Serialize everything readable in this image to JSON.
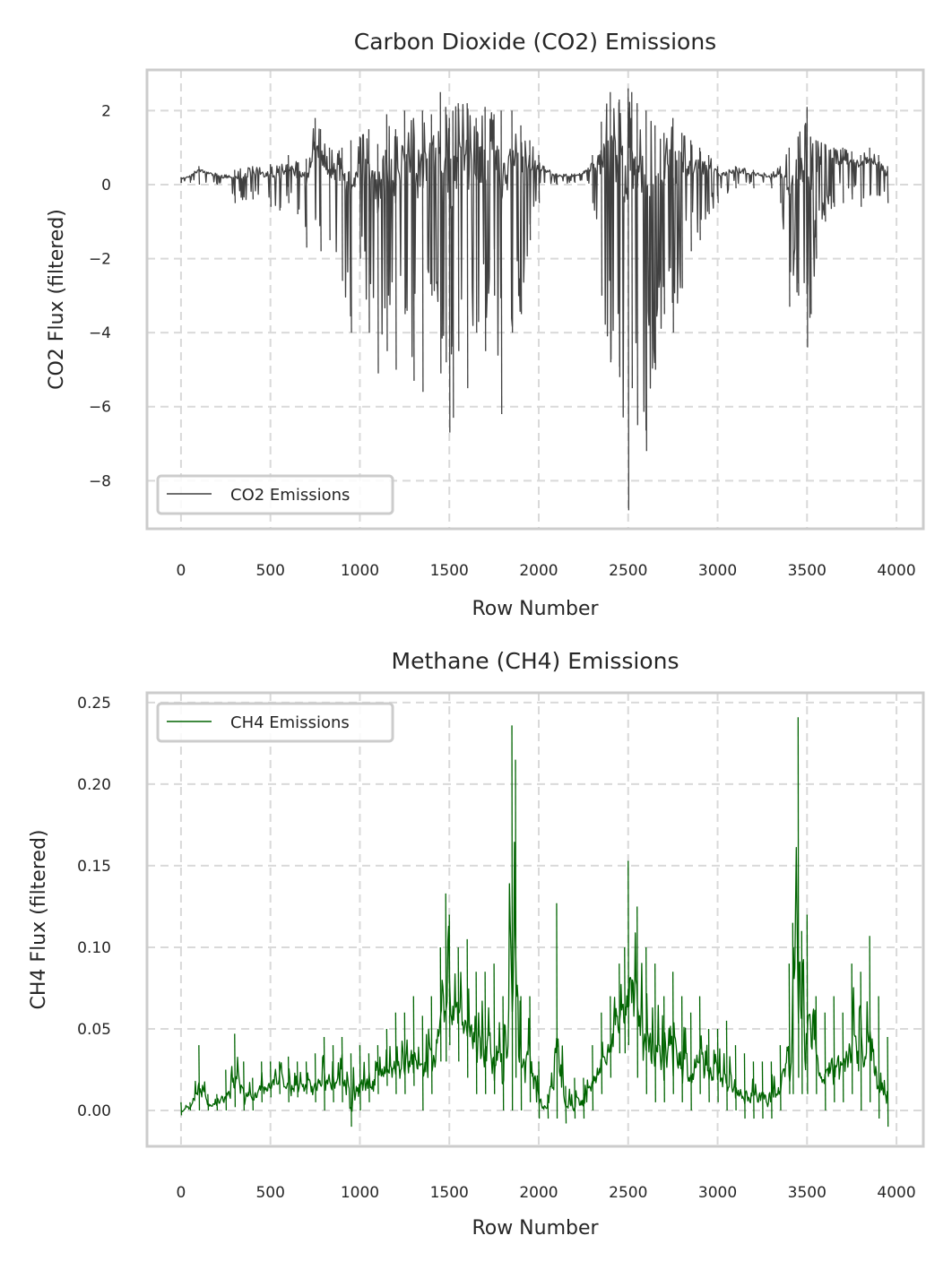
{
  "chart_data": [
    {
      "type": "line",
      "title": "Carbon Dioxide (CO2) Emissions",
      "xlabel": "Row Number",
      "ylabel": "CO2 Flux (filtered)",
      "xlim": [
        -190,
        4150
      ],
      "ylim": [
        -9.3,
        3.1
      ],
      "xticks": [
        0,
        500,
        1000,
        1500,
        2000,
        2500,
        3000,
        3500,
        4000
      ],
      "yticks": [
        2,
        0,
        -2,
        -4,
        -6,
        -8
      ],
      "ytick_labels": [
        "2",
        "0",
        "−2",
        "−4",
        "−6",
        "−8"
      ],
      "grid": true,
      "legend_position": "lower-left",
      "series": [
        {
          "name": "CO2 Emissions",
          "color": "#404040",
          "x": [
            0,
            50,
            100,
            200,
            300,
            400,
            500,
            550,
            600,
            650,
            700,
            750,
            780,
            830,
            900,
            950,
            1000,
            1050,
            1100,
            1150,
            1200,
            1250,
            1300,
            1350,
            1400,
            1450,
            1480,
            1500,
            1520,
            1550,
            1600,
            1650,
            1700,
            1750,
            1790,
            1850,
            1900,
            1950,
            2000,
            2030,
            2100,
            2200,
            2270,
            2300,
            2350,
            2400,
            2450,
            2500,
            2520,
            2550,
            2600,
            2650,
            2700,
            2750,
            2800,
            2850,
            2900,
            2950,
            3000,
            3100,
            3200,
            3300,
            3350,
            3400,
            3450,
            3500,
            3520,
            3550,
            3600,
            3650,
            3700,
            3750,
            3800,
            3850,
            3900,
            3950
          ],
          "min": [
            0.05,
            0.05,
            0.0,
            0.0,
            -0.5,
            -0.4,
            -0.6,
            -0.7,
            -0.5,
            -0.8,
            -1.7,
            -0.9,
            -1.8,
            -1.5,
            -2.6,
            -4.0,
            -2.0,
            -4.0,
            -5.1,
            -4.5,
            -5.0,
            -3.5,
            -5.3,
            -5.6,
            -3.0,
            -5.1,
            -4.8,
            -6.7,
            -6.3,
            -4.5,
            -5.5,
            -4.0,
            -4.5,
            -3.0,
            -6.2,
            -4.0,
            -3.5,
            -1.5,
            -0.5,
            0.05,
            0.0,
            0.05,
            0.1,
            -0.5,
            -3.0,
            -4.8,
            -5.2,
            -8.8,
            -5.5,
            -6.5,
            -7.2,
            -5.0,
            -3.5,
            -4.0,
            -2.8,
            -1.8,
            -1.5,
            -0.8,
            -0.5,
            -0.1,
            -0.1,
            -0.1,
            -0.5,
            -3.3,
            -3.0,
            -4.4,
            -3.5,
            -2.0,
            -1.0,
            -0.6,
            -0.5,
            -0.4,
            -0.6,
            -0.3,
            -0.3,
            -0.5
          ],
          "max": [
            0.2,
            0.25,
            0.5,
            0.3,
            0.4,
            0.5,
            0.55,
            0.5,
            0.8,
            0.6,
            0.7,
            1.8,
            1.5,
            1.0,
            1.0,
            1.2,
            1.3,
            1.5,
            1.1,
            1.9,
            1.5,
            2.0,
            1.8,
            2.0,
            1.9,
            2.5,
            2.1,
            1.8,
            2.0,
            2.2,
            2.2,
            1.8,
            2.1,
            1.9,
            2.0,
            2.0,
            1.6,
            1.2,
            0.8,
            0.5,
            0.3,
            0.3,
            0.4,
            0.8,
            1.7,
            2.5,
            2.3,
            2.6,
            2.5,
            2.2,
            2.0,
            1.6,
            1.4,
            1.8,
            1.4,
            1.2,
            1.0,
            0.8,
            0.5,
            0.5,
            0.4,
            0.3,
            0.5,
            1.0,
            1.3,
            2.1,
            1.3,
            1.2,
            1.1,
            1.0,
            1.0,
            0.9,
            0.8,
            1.0,
            0.8,
            0.5
          ]
        }
      ]
    },
    {
      "type": "line",
      "title": "Methane (CH4) Emissions",
      "xlabel": "Row Number",
      "ylabel": "CH4 Flux (filtered)",
      "xlim": [
        -190,
        4150
      ],
      "ylim": [
        -0.022,
        0.256
      ],
      "xticks": [
        0,
        500,
        1000,
        1500,
        2000,
        2500,
        3000,
        3500,
        4000
      ],
      "yticks": [
        0.25,
        0.2,
        0.15,
        0.1,
        0.05,
        0.0
      ],
      "ytick_labels": [
        "0.25",
        "0.20",
        "0.15",
        "0.10",
        "0.05",
        "0.00"
      ],
      "grid": true,
      "legend_position": "upper-left",
      "series": [
        {
          "name": "CH4 Emissions",
          "color": "#006400",
          "x": [
            0,
            50,
            100,
            150,
            200,
            250,
            300,
            350,
            400,
            450,
            500,
            550,
            600,
            650,
            700,
            750,
            800,
            850,
            900,
            950,
            1000,
            1050,
            1100,
            1150,
            1200,
            1250,
            1300,
            1350,
            1400,
            1450,
            1480,
            1500,
            1550,
            1600,
            1650,
            1700,
            1750,
            1800,
            1850,
            1870,
            1900,
            1950,
            2000,
            2050,
            2100,
            2150,
            2200,
            2250,
            2300,
            2350,
            2400,
            2450,
            2480,
            2500,
            2550,
            2600,
            2650,
            2700,
            2750,
            2800,
            2850,
            2900,
            2950,
            3000,
            3050,
            3100,
            3150,
            3200,
            3250,
            3300,
            3350,
            3400,
            3420,
            3450,
            3470,
            3500,
            3550,
            3600,
            3650,
            3700,
            3750,
            3800,
            3850,
            3900,
            3950
          ],
          "min": [
            -0.003,
            0.0,
            0.0,
            0.0,
            0.0,
            0.0,
            0.002,
            0.0,
            0.0,
            0.005,
            0.008,
            0.01,
            0.005,
            0.008,
            0.01,
            0.005,
            0.0,
            0.005,
            0.005,
            -0.01,
            0.0,
            0.005,
            0.01,
            0.015,
            0.01,
            0.01,
            0.015,
            0.0,
            0.01,
            0.03,
            0.03,
            0.04,
            0.03,
            0.02,
            0.01,
            0.01,
            0.01,
            0.0,
            0.0,
            0.02,
            0.0,
            0.005,
            -0.005,
            -0.005,
            -0.005,
            -0.008,
            -0.005,
            -0.005,
            0.0,
            0.01,
            0.02,
            0.035,
            0.035,
            0.04,
            0.02,
            0.01,
            0.005,
            0.005,
            0.01,
            0.005,
            0.0,
            0.01,
            0.005,
            0.005,
            0.0,
            0.0,
            -0.005,
            -0.005,
            -0.005,
            -0.005,
            0.0,
            0.01,
            0.01,
            0.02,
            0.01,
            0.01,
            0.01,
            0.0,
            0.005,
            0.005,
            0.01,
            0.0,
            0.005,
            -0.005,
            -0.01
          ],
          "max": [
            0.005,
            0.005,
            0.04,
            0.01,
            0.01,
            0.025,
            0.047,
            0.03,
            0.02,
            0.03,
            0.03,
            0.03,
            0.033,
            0.03,
            0.03,
            0.035,
            0.045,
            0.04,
            0.045,
            0.035,
            0.04,
            0.035,
            0.04,
            0.05,
            0.06,
            0.06,
            0.07,
            0.058,
            0.07,
            0.1,
            0.133,
            0.12,
            0.1,
            0.105,
            0.085,
            0.085,
            0.09,
            0.07,
            0.236,
            0.215,
            0.07,
            0.07,
            0.03,
            0.01,
            0.127,
            0.015,
            0.02,
            0.02,
            0.04,
            0.06,
            0.07,
            0.09,
            0.1,
            0.153,
            0.125,
            0.1,
            0.09,
            0.07,
            0.085,
            0.07,
            0.06,
            0.07,
            0.05,
            0.05,
            0.055,
            0.04,
            0.035,
            0.03,
            0.03,
            0.03,
            0.04,
            0.09,
            0.115,
            0.241,
            0.11,
            0.12,
            0.07,
            0.06,
            0.07,
            0.06,
            0.09,
            0.085,
            0.107,
            0.07,
            0.045
          ]
        }
      ]
    }
  ]
}
